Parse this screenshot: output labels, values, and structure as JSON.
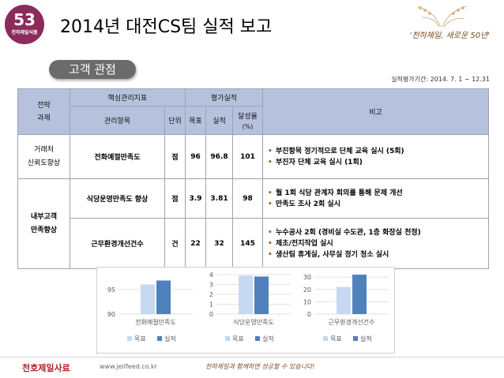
{
  "header": {
    "logo_number": "53",
    "logo_text": "천하제일식품",
    "title": "2014년 대전CS팀 실적 보고",
    "slogan": "'천하제일, 새로운 50년'"
  },
  "section_label": "고객 관점",
  "period": "실적평가기간: 2014. 7. 1 ~ 12.31",
  "table": {
    "headers": {
      "strategy": "전략\n과제",
      "kpi_group": "핵심관리지표",
      "eval_group": "평가실적",
      "item": "관리항목",
      "unit": "단위",
      "target": "목표",
      "actual": "실적",
      "rate": "달성율",
      "rate_unit": "(%)",
      "remark": "비고"
    },
    "rows": [
      {
        "strategy": "거래처\n신뢰도향상",
        "item": "전화예절만족도",
        "unit": "점",
        "target": "96",
        "actual": "96.8",
        "rate": "101",
        "notes": [
          "부진항목 정기적으로 단체 교육 실시 (5회)",
          "부진자 단체 교육 실시 (1회)"
        ]
      },
      {
        "strategy": "내부고객\n만족향상",
        "item": "식당운영만족도 향상",
        "unit": "점",
        "target": "3.9",
        "actual": "3.81",
        "rate": "98",
        "notes": [
          "월 1회 식당 관계자 회의를 통해 문제 개선",
          "만족도 조사 2회 실시"
        ]
      },
      {
        "strategy": "",
        "item": "근무환경개선건수",
        "unit": "건",
        "target": "22",
        "actual": "32",
        "rate": "145",
        "notes": [
          "누수공사 2회 (경비실 수도관, 1층 화장실 천정)",
          "제초/전지작업 실시",
          "생산팀 휴게실, 사무실 정기 청소 실시"
        ]
      }
    ]
  },
  "chart_data": [
    {
      "type": "bar",
      "categories": [
        "전화예절만족도"
      ],
      "series": [
        {
          "name": "목표",
          "values": [
            96
          ]
        },
        {
          "name": "실적",
          "values": [
            96.8
          ]
        }
      ],
      "ylim": [
        90,
        98
      ],
      "yticks": [
        "90",
        "95"
      ],
      "grid": true,
      "legend": "bottom",
      "colors": [
        "#c6d9f1",
        "#4f81bd"
      ]
    },
    {
      "type": "bar",
      "categories": [
        "식당운영만족도"
      ],
      "series": [
        {
          "name": "목표",
          "values": [
            3.9
          ]
        },
        {
          "name": "실적",
          "values": [
            3.81
          ]
        }
      ],
      "ylim": [
        0,
        4
      ],
      "yticks": [
        "0",
        "1",
        "2",
        "3",
        "4"
      ],
      "grid": true,
      "legend": "bottom",
      "colors": [
        "#c6d9f1",
        "#4f81bd"
      ]
    },
    {
      "type": "bar",
      "categories": [
        "근무환경개선건수"
      ],
      "series": [
        {
          "name": "목표",
          "values": [
            22
          ]
        },
        {
          "name": "실적",
          "values": [
            32
          ]
        }
      ],
      "ylim": [
        0,
        32
      ],
      "yticks": [
        "0",
        "10",
        "20",
        "30"
      ],
      "grid": true,
      "legend": "bottom",
      "colors": [
        "#c6d9f1",
        "#4f81bd"
      ]
    }
  ],
  "footer": {
    "company": "천호제일사료",
    "url": "www.jeilfeed.co.kr",
    "slogan": "천하제일과 함께하면 성공할 수 있습니다!"
  }
}
